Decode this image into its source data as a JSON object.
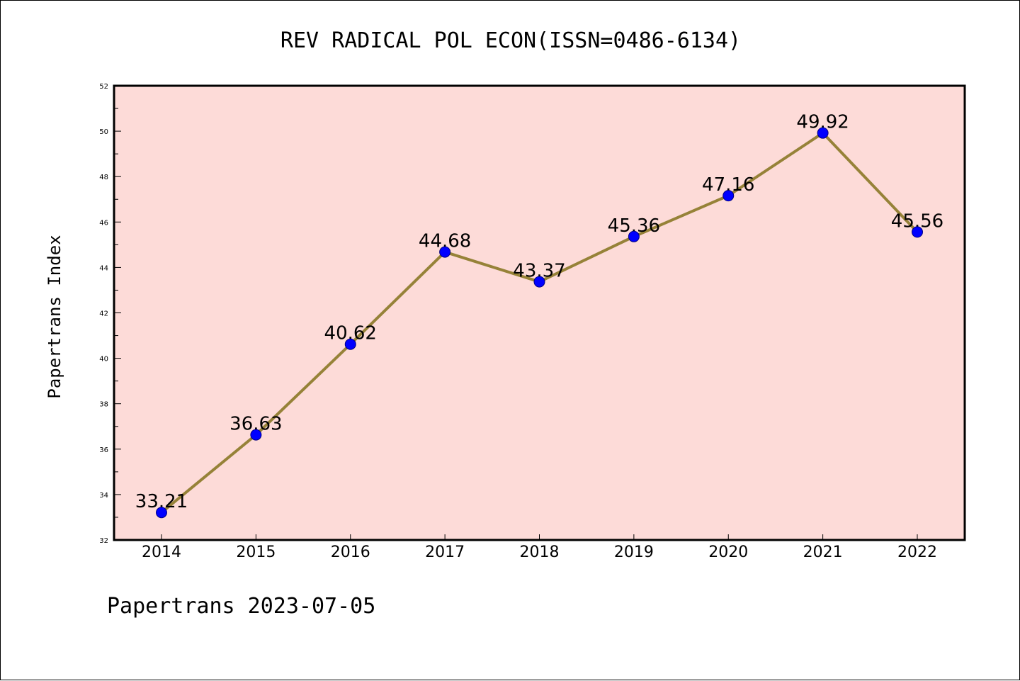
{
  "chart_data": {
    "type": "line",
    "title": "REV RADICAL POL ECON(ISSN=0486-6134)",
    "ylabel": "Papertrans Index",
    "xlabel": "",
    "footer": "Papertrans 2023-07-05",
    "categories": [
      "2014",
      "2015",
      "2016",
      "2017",
      "2018",
      "2019",
      "2020",
      "2021",
      "2022"
    ],
    "series": [
      {
        "values": [
          33.21,
          36.63,
          40.62,
          44.68,
          43.37,
          45.36,
          47.16,
          49.92,
          45.56
        ],
        "labels": [
          "33.21",
          "36.63",
          "40.62",
          "44.68",
          "43.37",
          "45.36",
          "47.16",
          "49.92",
          "45.56"
        ]
      }
    ],
    "ylim": [
      32,
      52
    ],
    "yticks": [
      "32",
      "34",
      "36",
      "38",
      "40",
      "42",
      "44",
      "46",
      "48",
      "50",
      "52"
    ],
    "grid": false,
    "legend": "none",
    "colors": {
      "plot_background": "#fddbd8",
      "line": "#968238",
      "marker": "#0000ff",
      "marker_edge": "#000080"
    }
  }
}
